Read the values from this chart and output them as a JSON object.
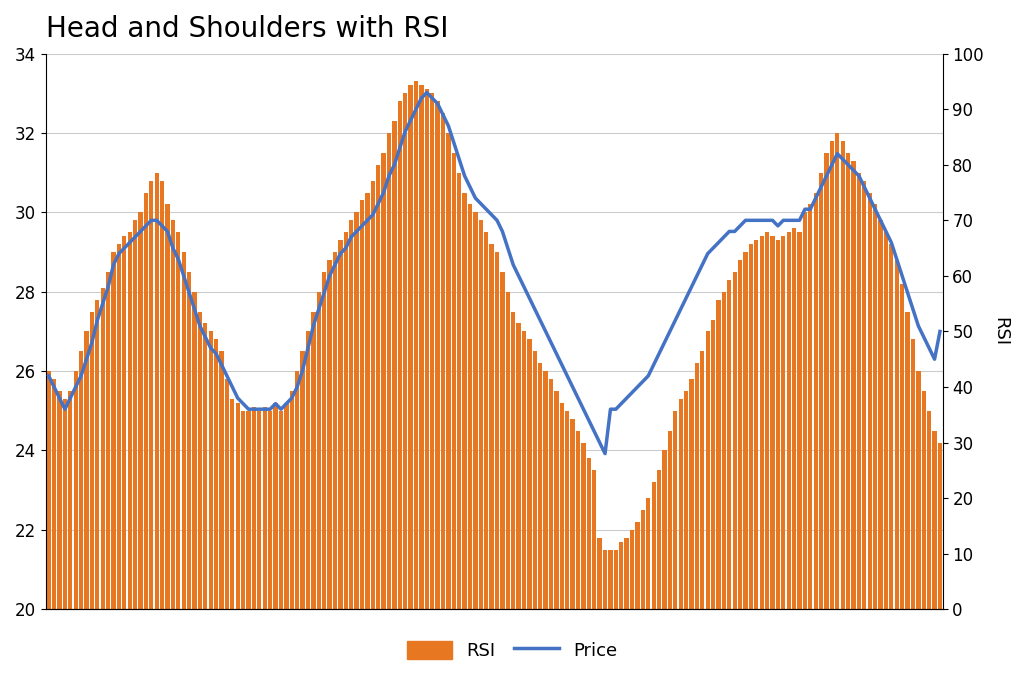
{
  "title": "Head and Shoulders with RSI",
  "price_label": "Price",
  "rsi_label": "RSI",
  "price_ylim": [
    20,
    34
  ],
  "rsi_ylim": [
    0,
    100
  ],
  "price_yticks": [
    20,
    22,
    24,
    26,
    28,
    30,
    32,
    34
  ],
  "rsi_yticks": [
    0,
    10,
    20,
    30,
    40,
    50,
    60,
    70,
    80,
    90,
    100
  ],
  "bar_color": "#E87722",
  "line_color": "#4472C4",
  "background_color": "#ffffff",
  "grid_color": "#cccccc",
  "title_fontsize": 20,
  "price_data": [
    26.0,
    25.8,
    25.5,
    25.3,
    25.5,
    26.0,
    26.5,
    27.0,
    27.5,
    27.8,
    28.1,
    28.5,
    29.0,
    29.2,
    29.4,
    29.5,
    29.8,
    30.0,
    30.5,
    30.8,
    31.0,
    30.8,
    30.2,
    29.8,
    29.5,
    29.0,
    28.5,
    28.0,
    27.5,
    27.2,
    27.0,
    26.8,
    26.5,
    25.8,
    25.3,
    25.2,
    25.0,
    25.0,
    25.1,
    25.0,
    25.1,
    25.0,
    25.2,
    25.0,
    25.2,
    25.5,
    26.0,
    26.5,
    27.0,
    27.5,
    28.0,
    28.5,
    28.8,
    29.0,
    29.3,
    29.5,
    29.8,
    30.0,
    30.3,
    30.5,
    30.8,
    31.2,
    31.5,
    32.0,
    32.3,
    32.8,
    33.0,
    33.2,
    33.3,
    33.2,
    33.1,
    33.0,
    32.8,
    32.5,
    32.0,
    31.5,
    31.0,
    30.5,
    30.2,
    30.0,
    29.8,
    29.5,
    29.2,
    29.0,
    28.5,
    28.0,
    27.5,
    27.2,
    27.0,
    26.8,
    26.5,
    26.2,
    26.0,
    25.8,
    25.5,
    25.2,
    25.0,
    24.8,
    24.5,
    24.2,
    23.8,
    23.5,
    21.8,
    21.5,
    21.5,
    21.5,
    21.7,
    21.8,
    22.0,
    22.2,
    22.5,
    22.8,
    23.2,
    23.5,
    24.0,
    24.5,
    25.0,
    25.3,
    25.5,
    25.8,
    26.2,
    26.5,
    27.0,
    27.3,
    27.8,
    28.0,
    28.3,
    28.5,
    28.8,
    29.0,
    29.2,
    29.3,
    29.4,
    29.5,
    29.4,
    29.3,
    29.4,
    29.5,
    29.6,
    29.5,
    30.0,
    30.2,
    30.5,
    31.0,
    31.5,
    31.8,
    32.0,
    31.8,
    31.5,
    31.3,
    31.0,
    30.8,
    30.5,
    30.2,
    29.8,
    29.5,
    29.2,
    28.8,
    28.2,
    27.5,
    26.8,
    26.0,
    25.5,
    25.0,
    24.5,
    24.2
  ],
  "rsi_data": [
    42,
    40,
    38,
    36,
    38,
    40,
    42,
    45,
    48,
    52,
    55,
    58,
    62,
    64,
    65,
    66,
    67,
    68,
    69,
    70,
    70,
    69,
    68,
    65,
    63,
    60,
    57,
    54,
    51,
    49,
    47,
    46,
    44,
    42,
    40,
    38,
    37,
    36,
    36,
    36,
    36,
    36,
    37,
    36,
    37,
    38,
    40,
    43,
    47,
    51,
    54,
    57,
    60,
    62,
    64,
    65,
    67,
    68,
    69,
    70,
    71,
    73,
    75,
    78,
    80,
    83,
    86,
    88,
    90,
    92,
    93,
    92,
    91,
    89,
    87,
    84,
    81,
    78,
    76,
    74,
    73,
    72,
    71,
    70,
    68,
    65,
    62,
    60,
    58,
    56,
    54,
    52,
    50,
    48,
    46,
    44,
    42,
    40,
    38,
    36,
    34,
    32,
    30,
    28,
    36,
    36,
    37,
    38,
    39,
    40,
    41,
    42,
    44,
    46,
    48,
    50,
    52,
    54,
    56,
    58,
    60,
    62,
    64,
    65,
    66,
    67,
    68,
    68,
    69,
    70,
    70,
    70,
    70,
    70,
    70,
    69,
    70,
    70,
    70,
    70,
    72,
    72,
    74,
    76,
    78,
    80,
    82,
    81,
    80,
    79,
    78,
    76,
    74,
    72,
    70,
    68,
    66,
    63,
    60,
    57,
    54,
    51,
    49,
    47,
    45,
    50
  ]
}
